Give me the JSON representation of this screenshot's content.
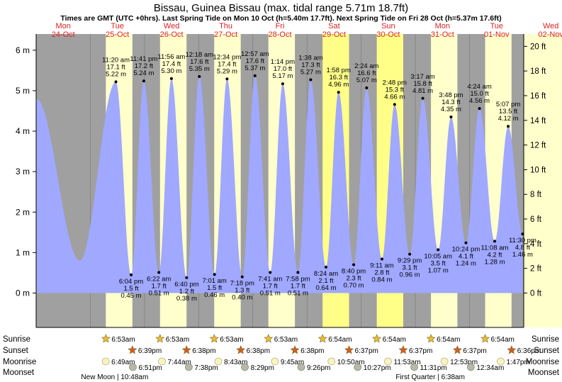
{
  "chart_data": {
    "type": "area",
    "title": "Bissau, Guinea Bissau (max. tidal range 5.71m 18.7ft)",
    "subtitle": "Times are GMT (UTC +0hrs). Last Spring Tide on Mon 10 Oct (h=5.40m 17.7ft). Next Spring Tide on Fri 28 Oct (h=5.37m 17.6ft)",
    "x_range_hours": [
      0,
      216
    ],
    "ylim_m": [
      -0.85,
      6.4
    ],
    "left_axis": {
      "unit": "m",
      "ticks": [
        0,
        1,
        2,
        3,
        4,
        5,
        6
      ],
      "tick_labels": [
        "0 m",
        "1 m",
        "2 m",
        "3 m",
        "4 m",
        "5 m",
        "6 m"
      ]
    },
    "right_axis": {
      "unit": "ft",
      "ticks": [
        0,
        2,
        4,
        6,
        8,
        10,
        12,
        14,
        16,
        18,
        20
      ],
      "tick_labels": [
        "0 ft",
        "2 ft",
        "4 ft",
        "6 ft",
        "8 ft",
        "10 ft",
        "12 ft",
        "14 ft",
        "16 ft",
        "18 ft",
        "20 ft"
      ]
    },
    "days": [
      {
        "dow": "Mon",
        "date": "24-Oct",
        "weekend": false
      },
      {
        "dow": "Tue",
        "date": "25-Oct",
        "weekend": false
      },
      {
        "dow": "Wed",
        "date": "26-Oct",
        "weekend": false
      },
      {
        "dow": "Thu",
        "date": "27-Oct",
        "weekend": false
      },
      {
        "dow": "Fri",
        "date": "28-Oct",
        "weekend": false
      },
      {
        "dow": "Sat",
        "date": "29-Oct",
        "weekend": true
      },
      {
        "dow": "Sun",
        "date": "30-Oct",
        "weekend": true
      },
      {
        "dow": "Mon",
        "date": "31-Oct",
        "weekend": false
      },
      {
        "dow": "Tue",
        "date": "01-Nov",
        "weekend": false
      },
      {
        "dow": "Wed",
        "date": "02-Nov",
        "weekend": false
      }
    ],
    "daylight": [
      {
        "day": 1,
        "sunrise_h": 6.88,
        "sunset_h": 18.65
      },
      {
        "day": 2,
        "sunrise_h": 6.88,
        "sunset_h": 18.63
      },
      {
        "day": 3,
        "sunrise_h": 6.88,
        "sunset_h": 18.63
      },
      {
        "day": 4,
        "sunrise_h": 6.88,
        "sunset_h": 18.63
      },
      {
        "day": 5,
        "sunrise_h": 6.9,
        "sunset_h": 18.62
      },
      {
        "day": 6,
        "sunrise_h": 6.9,
        "sunset_h": 18.62
      },
      {
        "day": 7,
        "sunrise_h": 6.9,
        "sunset_h": 18.62
      },
      {
        "day": 8,
        "sunrise_h": 6.9,
        "sunset_h": 18.6
      }
    ],
    "series_start": {
      "h": 0.1,
      "m": 4.8
    },
    "tides": [
      {
        "type": "low",
        "day": 0,
        "time": "19:20",
        "m": 0.8
      },
      {
        "type": "high",
        "day": 1,
        "time": "11:20 am",
        "ft": "17.1 ft",
        "m": "5.22 m",
        "mv": 5.22,
        "h": 35.33
      },
      {
        "type": "low",
        "day": 1,
        "time": "6:04 pm",
        "ft": "1.5 ft",
        "m": "0.45 m",
        "mv": 0.45,
        "h": 42.07
      },
      {
        "type": "high",
        "day": 1,
        "time": "11:41 pm",
        "ft": "17.2 ft",
        "m": "5.24 m",
        "mv": 5.24,
        "h": 47.68
      },
      {
        "type": "low",
        "day": 2,
        "time": "6:22 am",
        "ft": "1.7 ft",
        "m": "0.51 m",
        "mv": 0.51,
        "h": 54.37
      },
      {
        "type": "high",
        "day": 2,
        "time": "11:56 am",
        "ft": "17.4 ft",
        "m": "5.30 m",
        "mv": 5.3,
        "h": 59.93
      },
      {
        "type": "low",
        "day": 2,
        "time": "6:40 pm",
        "ft": "1.2 ft",
        "m": "0.38 m",
        "mv": 0.38,
        "h": 66.67
      },
      {
        "type": "high",
        "day": 3,
        "time": "12:18 am",
        "ft": "17.6 ft",
        "m": "5.35 m",
        "mv": 5.35,
        "h": 72.3
      },
      {
        "type": "low",
        "day": 3,
        "time": "7:01 am",
        "ft": "1.5 ft",
        "m": "0.46 m",
        "mv": 0.46,
        "h": 79.02
      },
      {
        "type": "high",
        "day": 3,
        "time": "12:34 pm",
        "ft": "17.4 ft",
        "m": "5.29 m",
        "mv": 5.29,
        "h": 84.57
      },
      {
        "type": "low",
        "day": 3,
        "time": "7:18 pm",
        "ft": "1.3 ft",
        "m": "0.40 m",
        "mv": 0.4,
        "h": 91.3
      },
      {
        "type": "high",
        "day": 4,
        "time": "12:57 am",
        "ft": "17.6 ft",
        "m": "5.37 m",
        "mv": 5.37,
        "h": 96.95
      },
      {
        "type": "low",
        "day": 4,
        "time": "7:41 am",
        "ft": "1.7 ft",
        "m": "0.51 m",
        "mv": 0.51,
        "h": 103.68
      },
      {
        "type": "high",
        "day": 4,
        "time": "1:14 pm",
        "ft": "17.0 ft",
        "m": "5.17 m",
        "mv": 5.17,
        "h": 109.23
      },
      {
        "type": "low",
        "day": 4,
        "time": "7:58 pm",
        "ft": "1.7 ft",
        "m": "0.51 m",
        "mv": 0.51,
        "h": 115.97
      },
      {
        "type": "high",
        "day": 5,
        "time": "1:38 am",
        "ft": "17.3 ft",
        "m": "5.27 m",
        "mv": 5.27,
        "h": 121.63
      },
      {
        "type": "low",
        "day": 5,
        "time": "8:24 am",
        "ft": "2.1 ft",
        "m": "0.64 m",
        "mv": 0.64,
        "h": 128.4
      },
      {
        "type": "high",
        "day": 5,
        "time": "1:58 pm",
        "ft": "16.3 ft",
        "m": "4.96 m",
        "mv": 4.96,
        "h": 133.97
      },
      {
        "type": "low",
        "day": 5,
        "time": "8:40 pm",
        "ft": "2.3 ft",
        "m": "0.70 m",
        "mv": 0.7,
        "h": 140.67
      },
      {
        "type": "high",
        "day": 6,
        "time": "2:24 am",
        "ft": "16.6 ft",
        "m": "5.07 m",
        "mv": 5.07,
        "h": 146.4
      },
      {
        "type": "low",
        "day": 6,
        "time": "9:11 am",
        "ft": "2.8 ft",
        "m": "0.84 m",
        "mv": 0.84,
        "h": 153.18
      },
      {
        "type": "high",
        "day": 6,
        "time": "2:48 pm",
        "ft": "15.3 ft",
        "m": "4.66 m",
        "mv": 4.66,
        "h": 158.8
      },
      {
        "type": "low",
        "day": 6,
        "time": "9:29 pm",
        "ft": "3.1 ft",
        "m": "0.96 m",
        "mv": 0.96,
        "h": 165.48
      },
      {
        "type": "high",
        "day": 7,
        "time": "3:17 am",
        "ft": "15.8 ft",
        "m": "4.81 m",
        "mv": 4.81,
        "h": 171.28
      },
      {
        "type": "low",
        "day": 7,
        "time": "10:05 am",
        "ft": "3.5 ft",
        "m": "1.07 m",
        "mv": 1.07,
        "h": 178.08
      },
      {
        "type": "high",
        "day": 7,
        "time": "3:48 pm",
        "ft": "14.3 ft",
        "m": "4.35 m",
        "mv": 4.35,
        "h": 183.8
      },
      {
        "type": "low",
        "day": 7,
        "time": "10:24 pm",
        "ft": "4.1 ft",
        "m": "1.24 m",
        "mv": 1.24,
        "h": 190.4
      },
      {
        "type": "high",
        "day": 8,
        "time": "4:24 am",
        "ft": "15.0 ft",
        "m": "4.56 m",
        "mv": 4.56,
        "h": 196.4
      },
      {
        "type": "low",
        "day": 8,
        "time": "11:08 am",
        "ft": "4.2 ft",
        "m": "1.28 m",
        "mv": 1.28,
        "h": 203.13
      },
      {
        "type": "high",
        "day": 8,
        "time": "5:07 pm",
        "ft": "13.5 ft",
        "m": "4.12 m",
        "mv": 4.12,
        "h": 209.12
      },
      {
        "type": "low",
        "day": 8,
        "time": "11:30 pm",
        "ft": "4.8 ft",
        "m": "1.46 m",
        "mv": 1.46,
        "h": 215.5
      }
    ],
    "row_labels": {
      "sunrise": "Sunrise",
      "sunset": "Sunset",
      "moonrise": "Moonrise",
      "moonset": "Moonset"
    },
    "sunrise": [
      {
        "day": 1,
        "time": "6:53am"
      },
      {
        "day": 2,
        "time": "6:53am"
      },
      {
        "day": 3,
        "time": "6:53am"
      },
      {
        "day": 4,
        "time": "6:53am"
      },
      {
        "day": 5,
        "time": "6:54am"
      },
      {
        "day": 6,
        "time": "6:54am"
      },
      {
        "day": 7,
        "time": "6:54am"
      },
      {
        "day": 8,
        "time": "6:54am"
      }
    ],
    "sunset": [
      {
        "day": 1,
        "time": "6:39pm"
      },
      {
        "day": 2,
        "time": "6:38pm"
      },
      {
        "day": 3,
        "time": "6:38pm"
      },
      {
        "day": 4,
        "time": "6:38pm"
      },
      {
        "day": 5,
        "time": "6:37pm"
      },
      {
        "day": 6,
        "time": "6:37pm"
      },
      {
        "day": 7,
        "time": "6:37pm"
      },
      {
        "day": 8,
        "time": "6:36pm"
      }
    ],
    "moonrise": [
      {
        "h": 30.82,
        "time": "6:49am"
      },
      {
        "h": 55.73,
        "time": "7:44am"
      },
      {
        "h": 80.72,
        "time": "8:43am"
      },
      {
        "h": 105.75,
        "time": "9:45am"
      },
      {
        "h": 130.83,
        "time": "10:50am"
      },
      {
        "h": 155.88,
        "time": "11:53am"
      },
      {
        "h": 180.88,
        "time": "12:53pm"
      },
      {
        "h": 205.78,
        "time": "1:47pm"
      }
    ],
    "moonset": [
      {
        "h": 42.85,
        "time": "6:51pm"
      },
      {
        "h": 67.63,
        "time": "7:38pm"
      },
      {
        "h": 92.48,
        "time": "8:29pm"
      },
      {
        "h": 117.43,
        "time": "9:26pm"
      },
      {
        "h": 142.45,
        "time": "10:27pm"
      },
      {
        "h": 167.52,
        "time": "11:31pm"
      },
      {
        "h": 192.57,
        "time": "12:34am"
      }
    ],
    "moon_phases": [
      {
        "label": "New Moon",
        "time": "10:48am",
        "h": 34.8
      },
      {
        "label": "First Quarter",
        "time": "6:38am",
        "h": 174.6
      }
    ],
    "colors": {
      "night": "#a0a0a0",
      "day": "#ffffcc",
      "weekend_day": "#ffff88",
      "water": "#a0a8ff",
      "day_label": "#e02020",
      "sunrise_star": "#e8c030",
      "sunset_star": "#d06020",
      "moonrise": "#f8f4c0",
      "moonset": "#b8b8a8"
    }
  }
}
